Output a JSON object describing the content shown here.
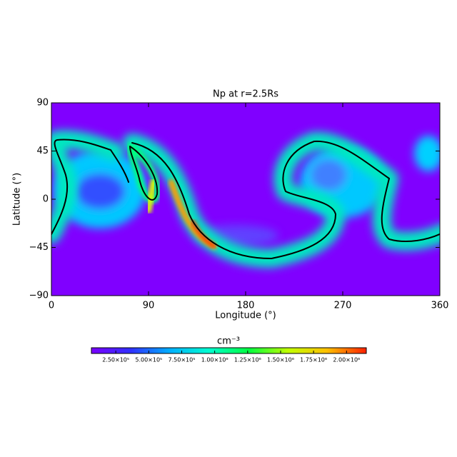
{
  "chart_data": {
    "type": "heatmap",
    "title": "Np at r=2.5Rs",
    "x_label": "Longitude (°)",
    "y_label": "Latitude (°)",
    "xlim": [
      0,
      360
    ],
    "xticks": [
      0,
      90,
      180,
      270,
      360
    ],
    "ylim": [
      -90,
      90
    ],
    "yticks": [
      {
        "value": -90,
        "label": "−90"
      },
      {
        "value": -45,
        "label": "−45"
      },
      0,
      45,
      90
    ],
    "colorbar": {
      "label": "cm⁻³",
      "clim": [
        65000,
        2150000
      ],
      "ticks": [
        {
          "value": 250000,
          "label": "2.50×10⁵"
        },
        {
          "value": 500000,
          "label": "5.00×10⁵"
        },
        {
          "value": 750000,
          "label": "7.50×10⁵"
        },
        {
          "value": 1000000,
          "label": "1.00×10⁶"
        },
        {
          "value": 1250000,
          "label": "1.25×10⁶"
        },
        {
          "value": 1500000,
          "label": "1.50×10⁶"
        },
        {
          "value": 1750000,
          "label": "1.75×10⁶"
        },
        {
          "value": 2000000,
          "label": "2.00×10⁶"
        }
      ],
      "colors": [
        "#7a00ff",
        "#3030ff",
        "#00b0ff",
        "#00ffd0",
        "#00ff40",
        "#c0ff00",
        "#ffc000",
        "#ff2000"
      ]
    }
  }
}
